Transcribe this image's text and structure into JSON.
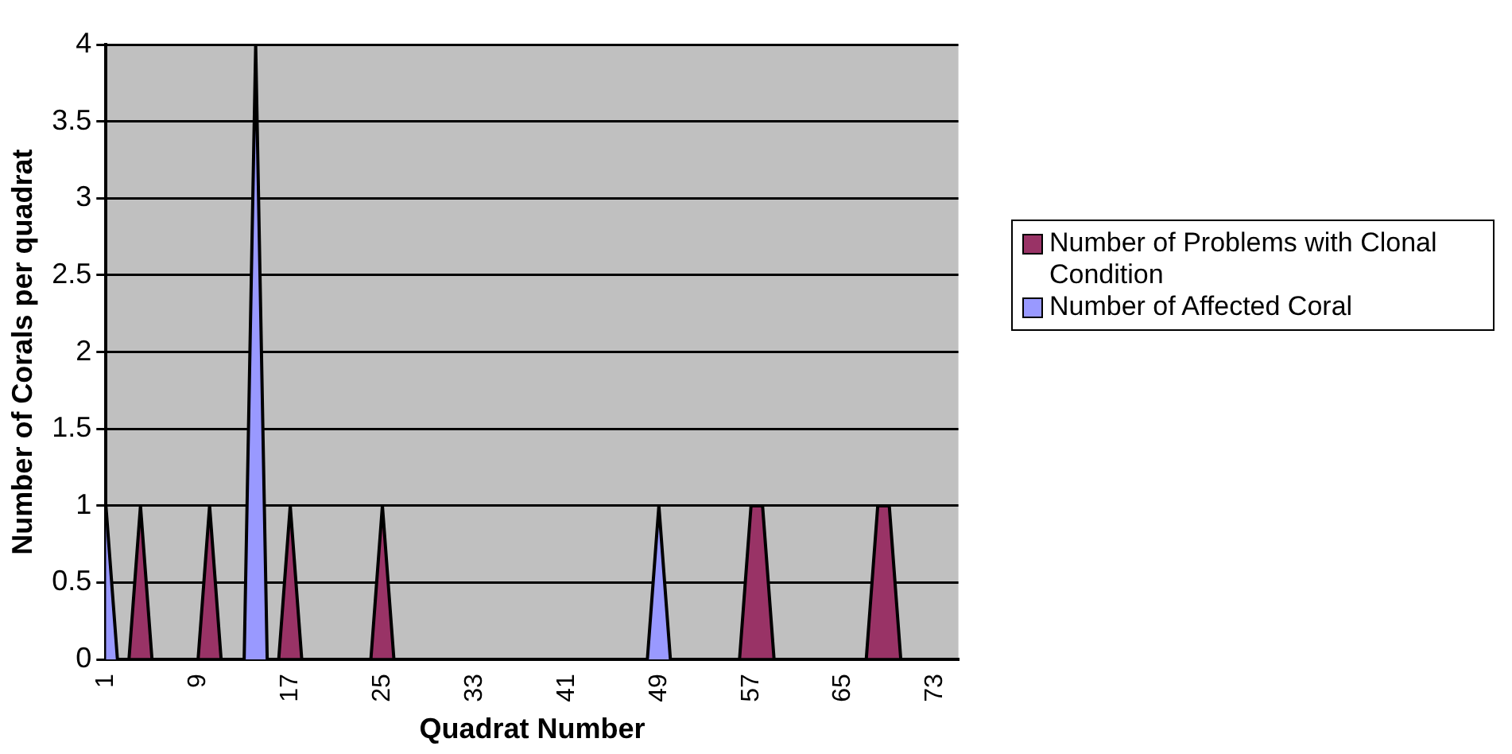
{
  "chart_data": {
    "type": "area",
    "xlabel": "Quadrat Number",
    "ylabel": "Number of Corals per quadrat",
    "categories": [
      "1",
      null,
      null,
      null,
      null,
      null,
      null,
      null,
      "9",
      null,
      null,
      null,
      null,
      null,
      null,
      null,
      "17",
      null,
      null,
      null,
      null,
      null,
      null,
      null,
      "25",
      null,
      null,
      null,
      null,
      null,
      null,
      null,
      "33",
      null,
      null,
      null,
      null,
      null,
      null,
      null,
      "41",
      null,
      null,
      null,
      null,
      null,
      null,
      null,
      "49",
      null,
      null,
      null,
      null,
      null,
      null,
      null,
      "57",
      null,
      null,
      null,
      null,
      null,
      null,
      null,
      "65",
      null,
      null,
      null,
      null,
      null,
      null,
      null,
      "73",
      null,
      null
    ],
    "series": [
      {
        "name": "Number of Problems with Clonal Condition",
        "color": "#993366",
        "values": [
          0,
          0,
          0,
          1,
          0,
          0,
          0,
          0,
          0,
          1,
          0,
          0,
          0,
          0,
          0,
          0,
          1,
          0,
          0,
          0,
          0,
          0,
          0,
          0,
          1,
          0,
          0,
          0,
          0,
          0,
          0,
          0,
          0,
          0,
          0,
          0,
          0,
          0,
          0,
          0,
          0,
          0,
          0,
          0,
          0,
          0,
          0,
          0,
          0,
          0,
          0,
          0,
          0,
          0,
          0,
          0,
          1,
          1,
          0,
          0,
          0,
          0,
          0,
          0,
          0,
          0,
          0,
          1,
          1,
          0,
          0,
          0,
          0,
          0,
          0
        ]
      },
      {
        "name": "Number of Affected Coral",
        "color": "#9999ff",
        "values": [
          1,
          0,
          0,
          0,
          0,
          0,
          0,
          0,
          0,
          0,
          0,
          0,
          0,
          4,
          0,
          0,
          0,
          0,
          0,
          0,
          0,
          0,
          0,
          0,
          0,
          0,
          0,
          0,
          0,
          0,
          0,
          0,
          0,
          0,
          0,
          0,
          0,
          0,
          0,
          0,
          0,
          0,
          0,
          0,
          0,
          0,
          0,
          0,
          1,
          0,
          0,
          0,
          0,
          0,
          0,
          0,
          0,
          0,
          0,
          0,
          0,
          0,
          0,
          0,
          0,
          0,
          0,
          0,
          0,
          0,
          0,
          0,
          0,
          0,
          0
        ]
      }
    ],
    "ylim": [
      0,
      4
    ],
    "yticks": [
      0,
      0.5,
      1,
      1.5,
      2,
      2.5,
      3,
      3.5,
      4
    ],
    "grid": "y",
    "legend": "right"
  }
}
